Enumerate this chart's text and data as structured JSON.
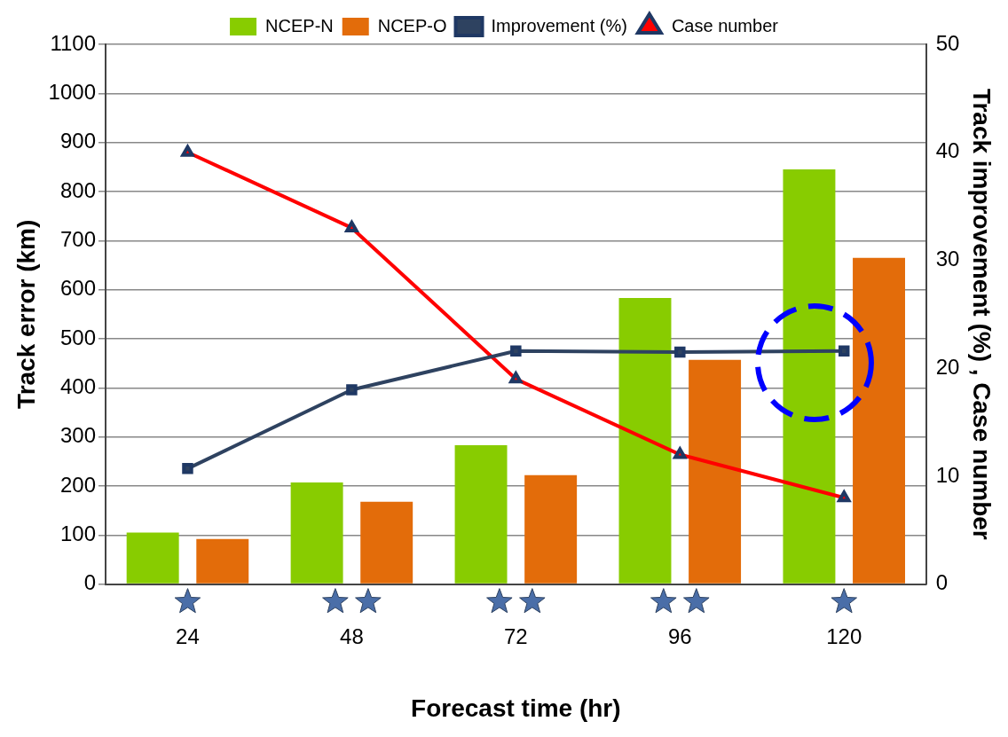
{
  "chart_data": {
    "type": "bar",
    "xlabel": "Forecast time (hr)",
    "ylabel": "Track error (km)",
    "y2label": "Track improvement (%) , Case number",
    "categories": [
      "24",
      "48",
      "72",
      "96",
      "120"
    ],
    "series": [
      {
        "name": "NCEP-N",
        "color": "#88cc00",
        "values": [
          105,
          207,
          283,
          583,
          845
        ]
      },
      {
        "name": "NCEP-O",
        "color": "#e36c0a",
        "values": [
          92,
          168,
          222,
          457,
          665
        ]
      },
      {
        "name": "Improvement (%)",
        "type": "line",
        "axis": "y2",
        "color": "#2e4260",
        "marker": "square",
        "values": [
          10.7,
          18.0,
          21.6,
          21.5,
          21.6
        ]
      },
      {
        "name": "Case number",
        "type": "line",
        "axis": "y2",
        "color": "#ff0000",
        "marker": "triangle",
        "values": [
          40,
          33,
          19,
          12,
          8
        ]
      }
    ],
    "ylim": [
      0,
      1100
    ],
    "yticks": [
      0,
      100,
      200,
      300,
      400,
      500,
      600,
      700,
      800,
      900,
      1000,
      1100
    ],
    "y2lim": [
      0,
      50
    ],
    "y2ticks": [
      0,
      10,
      20,
      30,
      40,
      50
    ],
    "grid": "y",
    "legend": "top"
  }
}
